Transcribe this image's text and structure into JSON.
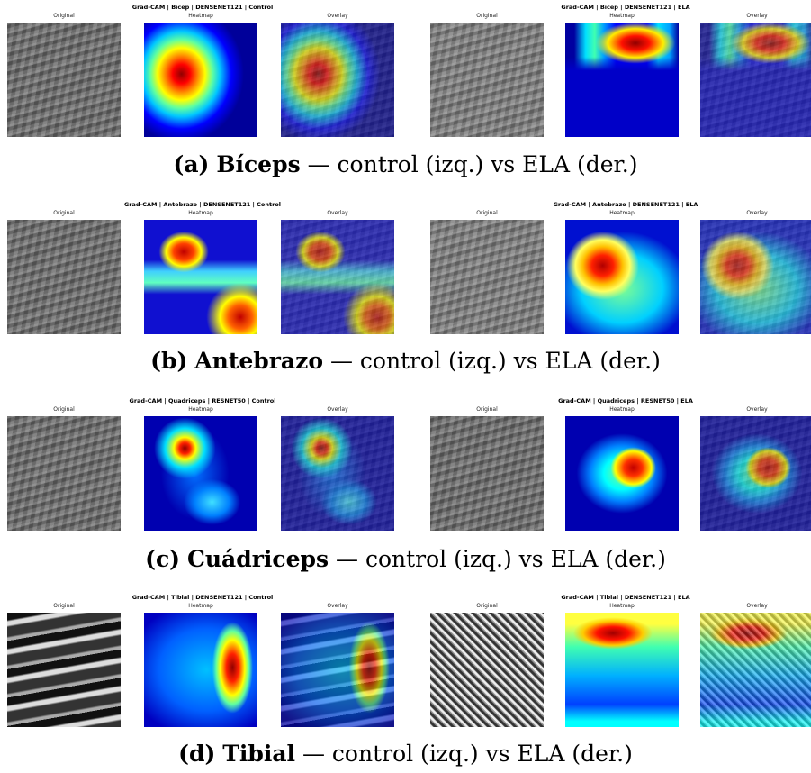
{
  "figure": {
    "rows": [
      {
        "left": {
          "title": "Grad-CAM | Bicep | DENSENET121 | Control",
          "panels": [
            "Original",
            "Heatmap",
            "Overlay"
          ]
        },
        "right": {
          "title": "Grad-CAM | Bicep | DENSENET121 | ELA",
          "panels": [
            "Original",
            "Heatmap",
            "Overlay"
          ]
        },
        "caption": {
          "label": "(a)",
          "muscle": "Bíceps",
          "text": "— control (izq.) vs ELA (der.)"
        }
      },
      {
        "left": {
          "title": "Grad-CAM | Antebrazo | DENSENET121 | Control",
          "panels": [
            "Original",
            "Heatmap",
            "Overlay"
          ]
        },
        "right": {
          "title": "Grad-CAM | Antebrazo | DENSENET121 | ELA",
          "panels": [
            "Original",
            "Heatmap",
            "Overlay"
          ]
        },
        "caption": {
          "label": "(b)",
          "muscle": "Antebrazo",
          "text": "— control (izq.) vs ELA (der.)"
        }
      },
      {
        "left": {
          "title": "Grad-CAM | Quadriceps | RESNET50 | Control",
          "panels": [
            "Original",
            "Heatmap",
            "Overlay"
          ]
        },
        "right": {
          "title": "Grad-CAM | Quadriceps | RESNET50 | ELA",
          "panels": [
            "Original",
            "Heatmap",
            "Overlay"
          ]
        },
        "caption": {
          "label": "(c)",
          "muscle": "Cuádriceps",
          "text": "— control (izq.) vs ELA (der.)"
        }
      },
      {
        "left": {
          "title": "Grad-CAM | Tibial | DENSENET121 | Control",
          "panels": [
            "Original",
            "Heatmap",
            "Overlay"
          ]
        },
        "right": {
          "title": "Grad-CAM | Tibial | DENSENET121 | ELA",
          "panels": [
            "Original",
            "Heatmap",
            "Overlay"
          ]
        },
        "caption": {
          "label": "(d)",
          "muscle": "Tibial",
          "text": "— control (izq.) vs ELA (der.)"
        }
      }
    ]
  }
}
